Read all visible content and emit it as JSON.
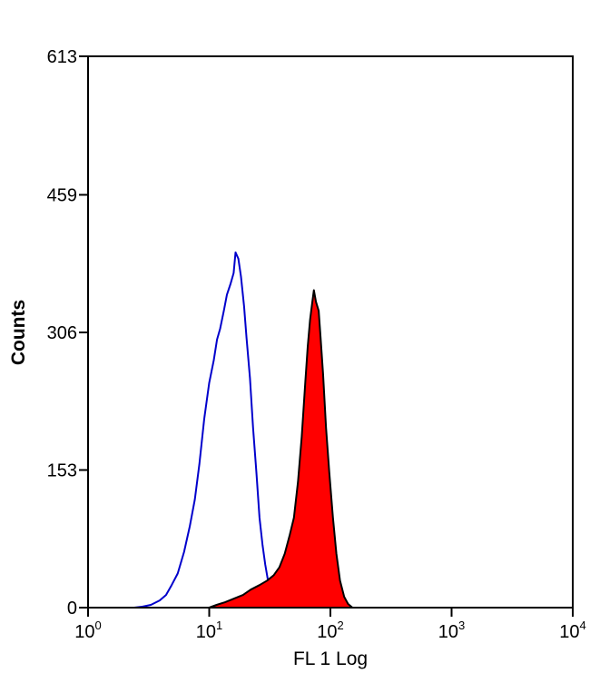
{
  "chart_data": {
    "type": "area",
    "title": "",
    "xlabel": "FL 1 Log",
    "ylabel": "Counts",
    "x_scale": "log",
    "xlim": [
      1,
      10000
    ],
    "ylim": [
      0,
      613
    ],
    "grid": false,
    "legend": "none",
    "x_ticks": [
      {
        "value": 1,
        "base": "10",
        "exp": "0"
      },
      {
        "value": 10,
        "base": "10",
        "exp": "1"
      },
      {
        "value": 100,
        "base": "10",
        "exp": "2"
      },
      {
        "value": 1000,
        "base": "10",
        "exp": "3"
      },
      {
        "value": 10000,
        "base": "10",
        "exp": "4"
      }
    ],
    "y_ticks": [
      {
        "value": 0,
        "label": "0"
      },
      {
        "value": 153,
        "label": "153"
      },
      {
        "value": 306,
        "label": "306"
      },
      {
        "value": 459,
        "label": "459"
      },
      {
        "value": 613,
        "label": "613"
      }
    ],
    "series": [
      {
        "style": "outline",
        "color": "#0000cc",
        "points": [
          [
            2.4,
            0
          ],
          [
            2.8,
            1
          ],
          [
            3.3,
            3
          ],
          [
            3.9,
            8
          ],
          [
            4.4,
            14
          ],
          [
            4.9,
            25
          ],
          [
            5.5,
            38
          ],
          [
            6.2,
            62
          ],
          [
            6.9,
            90
          ],
          [
            7.6,
            120
          ],
          [
            8.3,
            160
          ],
          [
            9.1,
            210
          ],
          [
            10.0,
            250
          ],
          [
            10.9,
            275
          ],
          [
            11.6,
            298
          ],
          [
            12.3,
            310
          ],
          [
            13.2,
            330
          ],
          [
            14.0,
            348
          ],
          [
            15.0,
            360
          ],
          [
            15.9,
            372
          ],
          [
            16.5,
            395
          ],
          [
            17.4,
            388
          ],
          [
            18.3,
            368
          ],
          [
            19.4,
            335
          ],
          [
            20.3,
            300
          ],
          [
            21.7,
            255
          ],
          [
            23.0,
            200
          ],
          [
            24.5,
            150
          ],
          [
            26.0,
            100
          ],
          [
            27.5,
            70
          ],
          [
            29.0,
            48
          ],
          [
            31.0,
            25
          ],
          [
            33.0,
            12
          ],
          [
            36.0,
            4
          ],
          [
            40.0,
            0
          ]
        ]
      },
      {
        "style": "filled",
        "color": "#ff0000",
        "edge_color": "#000000",
        "points": [
          [
            10.0,
            0
          ],
          [
            11.5,
            3
          ],
          [
            13.5,
            6
          ],
          [
            16.0,
            10
          ],
          [
            19.0,
            14
          ],
          [
            22.0,
            20
          ],
          [
            26.0,
            25
          ],
          [
            30.0,
            30
          ],
          [
            34.0,
            36
          ],
          [
            38.0,
            45
          ],
          [
            42.0,
            60
          ],
          [
            46.0,
            80
          ],
          [
            50.0,
            100
          ],
          [
            54.0,
            140
          ],
          [
            58.0,
            190
          ],
          [
            62.0,
            250
          ],
          [
            65.0,
            290
          ],
          [
            68.0,
            320
          ],
          [
            71.0,
            340
          ],
          [
            73.0,
            353
          ],
          [
            76.0,
            340
          ],
          [
            80.0,
            330
          ],
          [
            83.0,
            300
          ],
          [
            87.0,
            260
          ],
          [
            92.0,
            200
          ],
          [
            98.0,
            150
          ],
          [
            105.0,
            100
          ],
          [
            112.0,
            60
          ],
          [
            120.0,
            30
          ],
          [
            130.0,
            12
          ],
          [
            140.0,
            4
          ],
          [
            152.0,
            0
          ]
        ]
      }
    ]
  }
}
